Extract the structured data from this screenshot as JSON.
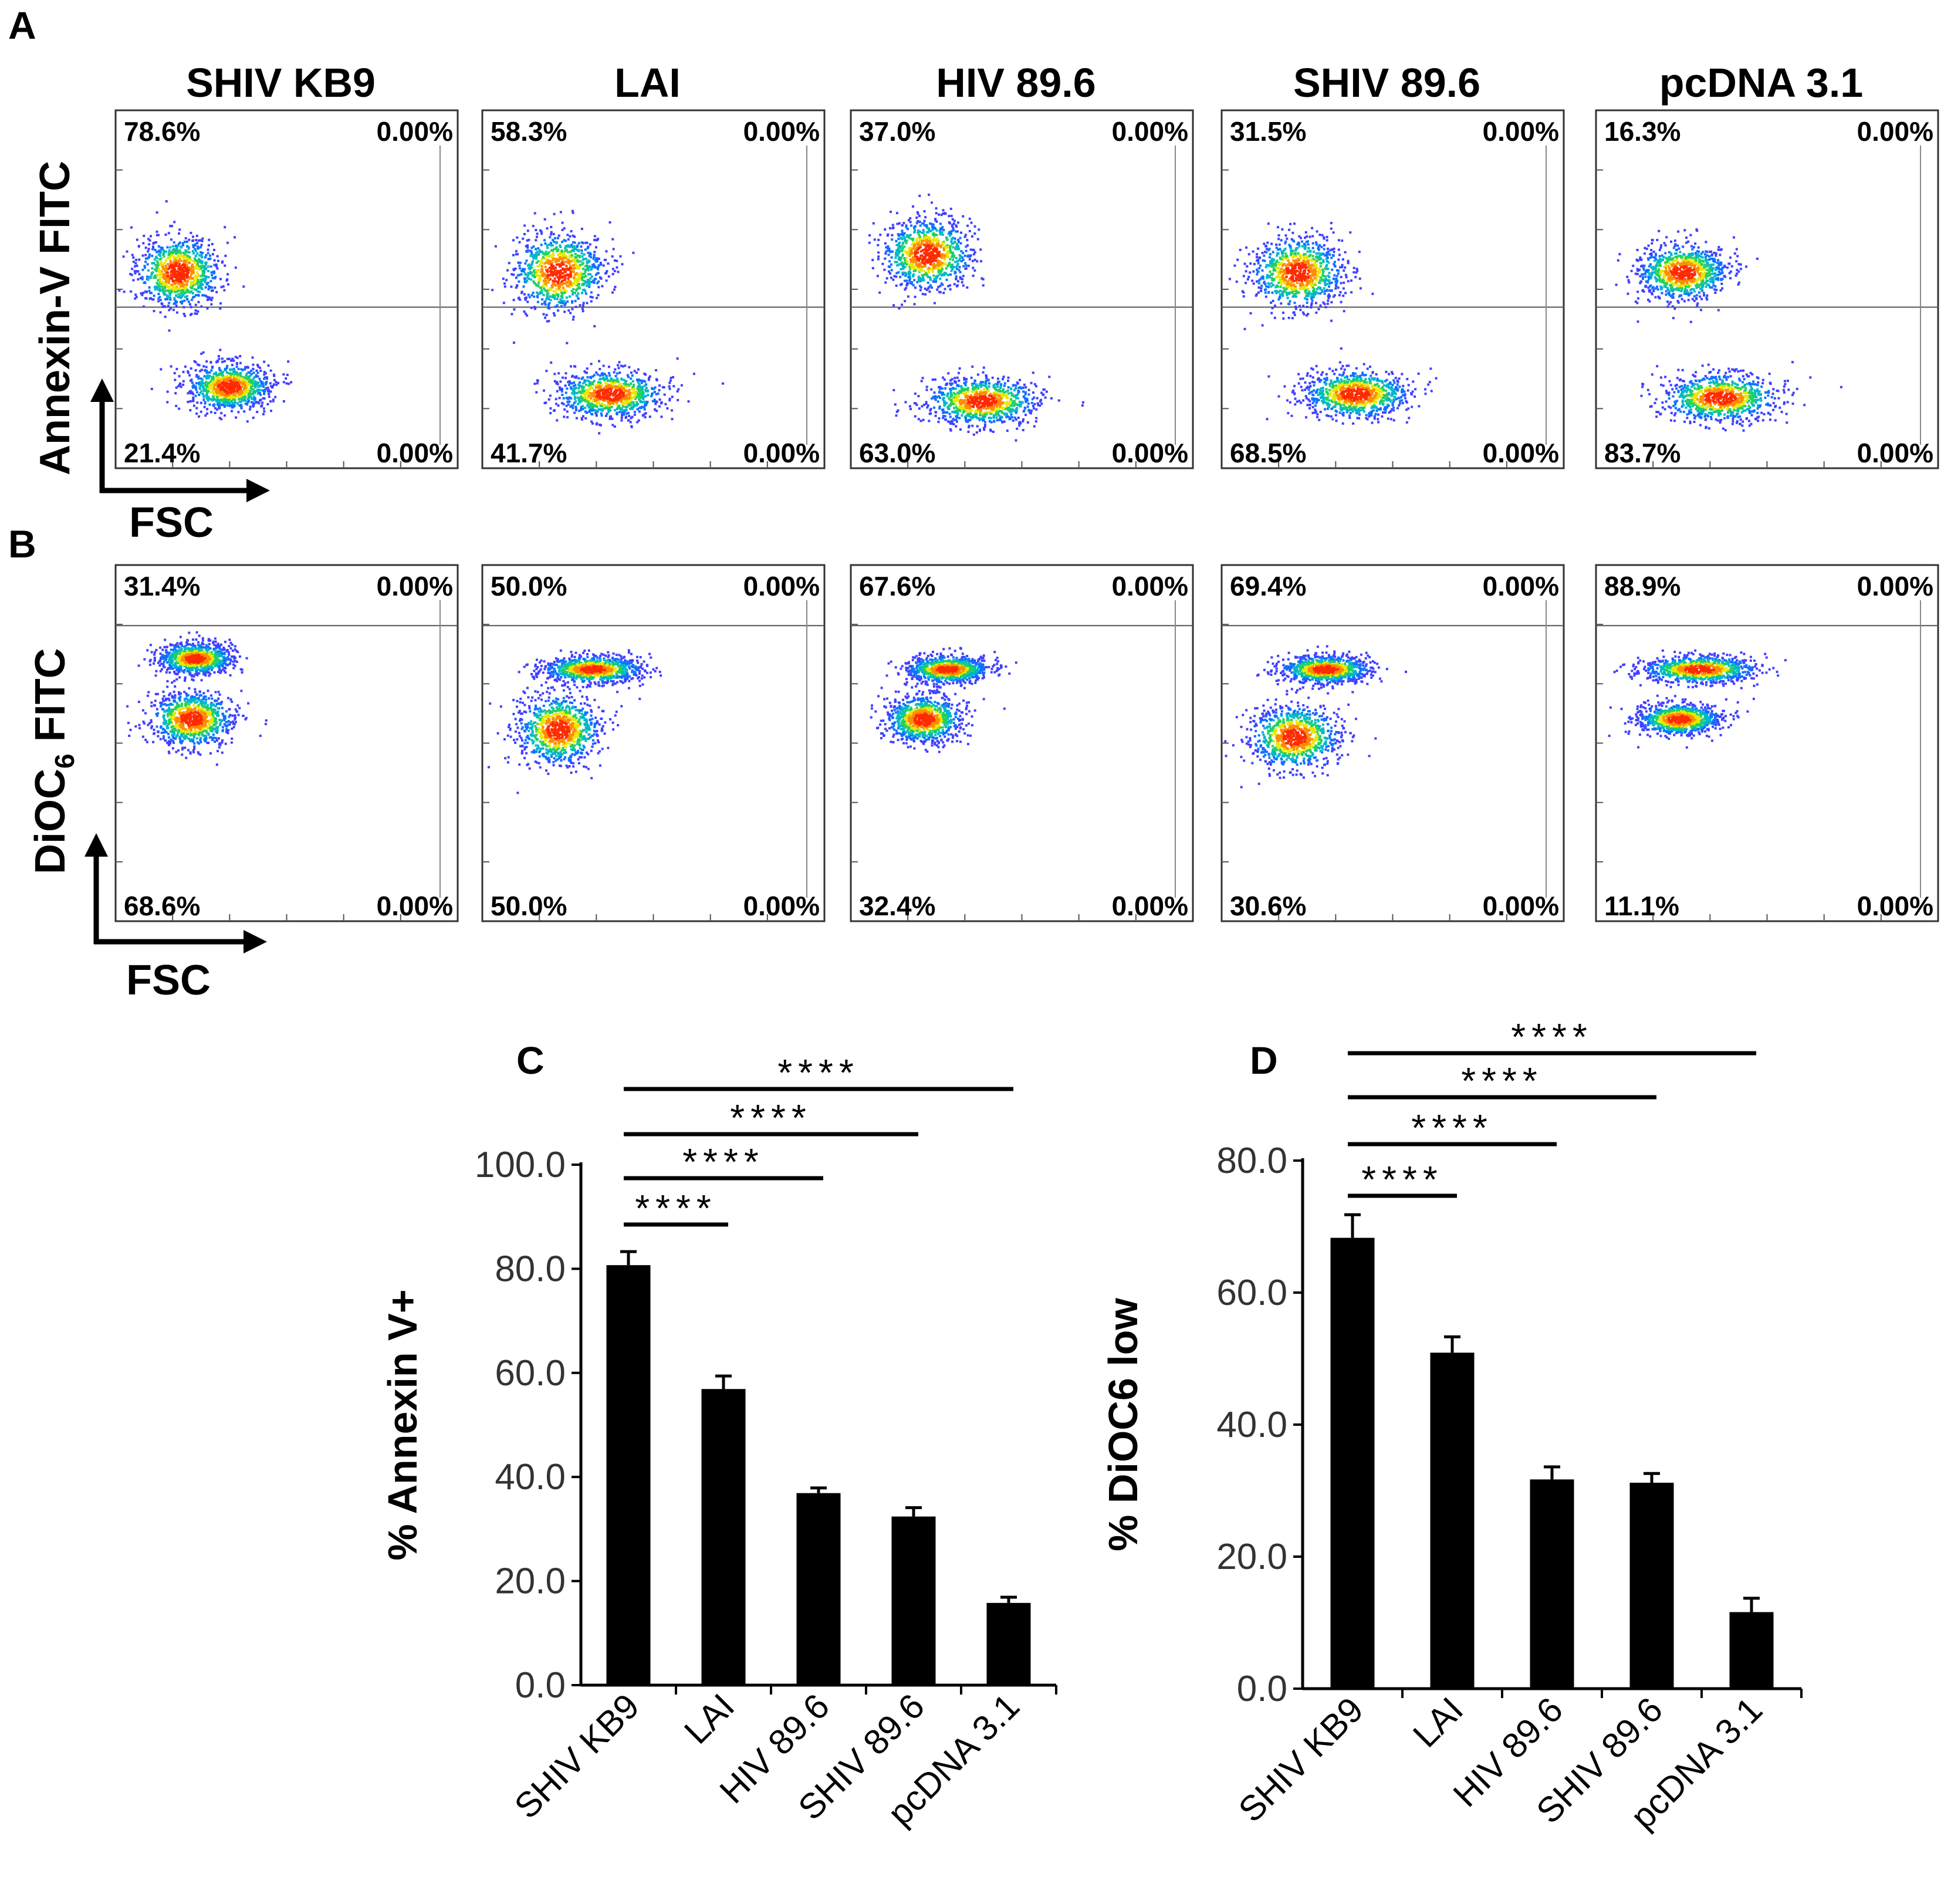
{
  "panels": {
    "A": "A",
    "B": "B",
    "C": "C",
    "D": "D"
  },
  "flow": {
    "columns": [
      "SHIV KB9",
      "LAI",
      "HIV 89.6",
      "SHIV 89.6",
      "pcDNA 3.1"
    ],
    "x_axis_label": "FSC",
    "row_A": {
      "y_axis_label": "Annexin-V FITC",
      "quadrants": [
        {
          "ul": "78.6%",
          "ur": "0.00%",
          "ll": "21.4%",
          "lr": "0.00%"
        },
        {
          "ul": "58.3%",
          "ur": "0.00%",
          "ll": "41.7%",
          "lr": "0.00%"
        },
        {
          "ul": "37.0%",
          "ur": "0.00%",
          "ll": "63.0%",
          "lr": "0.00%"
        },
        {
          "ul": "31.5%",
          "ur": "0.00%",
          "ll": "68.5%",
          "lr": "0.00%"
        },
        {
          "ul": "16.3%",
          "ur": "0.00%",
          "ll": "83.7%",
          "lr": "0.00%"
        }
      ]
    },
    "row_B": {
      "y_axis_label_main": "DiOC",
      "y_axis_label_sub": "6",
      "y_axis_label_rest": " FITC",
      "quadrants": [
        {
          "ul": "31.4%",
          "ur": "0.00%",
          "ll": "68.6%",
          "lr": "0.00%"
        },
        {
          "ul": "50.0%",
          "ur": "0.00%",
          "ll": "50.0%",
          "lr": "0.00%"
        },
        {
          "ul": "67.6%",
          "ur": "0.00%",
          "ll": "32.4%",
          "lr": "0.00%"
        },
        {
          "ul": "69.4%",
          "ur": "0.00%",
          "ll": "30.6%",
          "lr": "0.00%"
        },
        {
          "ul": "88.9%",
          "ur": "0.00%",
          "ll": "11.1%",
          "lr": "0.00%"
        }
      ]
    }
  },
  "chart_data": [
    {
      "panel": "C",
      "type": "bar",
      "categories": [
        "SHIV KB9",
        "LAI",
        "HIV 89.6",
        "SHIV 89.6",
        "pcDNA 3.1"
      ],
      "values": [
        80.7,
        56.9,
        36.9,
        32.4,
        15.8
      ],
      "errors": [
        2.6,
        2.5,
        1.0,
        1.7,
        1.1
      ],
      "ylabel": "% Annexin V+",
      "ylim": [
        0,
        100
      ],
      "yticks": [
        "0.0",
        "20.0",
        "40.0",
        "60.0",
        "80.0",
        "100.0"
      ],
      "significance": [
        {
          "from": "SHIV KB9",
          "to": "LAI",
          "label": "****"
        },
        {
          "from": "SHIV KB9",
          "to": "HIV 89.6",
          "label": "****"
        },
        {
          "from": "SHIV KB9",
          "to": "SHIV 89.6",
          "label": "****"
        },
        {
          "from": "SHIV KB9",
          "to": "pcDNA 3.1",
          "label": "****"
        }
      ]
    },
    {
      "panel": "D",
      "type": "bar",
      "categories": [
        "SHIV KB9",
        "LAI",
        "HIV 89.6",
        "SHIV 89.6",
        "pcDNA 3.1"
      ],
      "values": [
        68.3,
        50.9,
        31.7,
        31.2,
        11.6
      ],
      "errors": [
        3.5,
        2.4,
        1.9,
        1.4,
        2.1
      ],
      "ylabel": "% DiOC6 low",
      "ylim": [
        0,
        80
      ],
      "yticks": [
        "0.0",
        "20.0",
        "40.0",
        "60.0",
        "80.0"
      ],
      "significance": [
        {
          "from": "SHIV KB9",
          "to": "LAI",
          "label": "****"
        },
        {
          "from": "SHIV KB9",
          "to": "HIV 89.6",
          "label": "****"
        },
        {
          "from": "SHIV KB9",
          "to": "SHIV 89.6",
          "label": "****"
        },
        {
          "from": "SHIV KB9",
          "to": "pcDNA 3.1",
          "label": "****"
        }
      ]
    }
  ]
}
